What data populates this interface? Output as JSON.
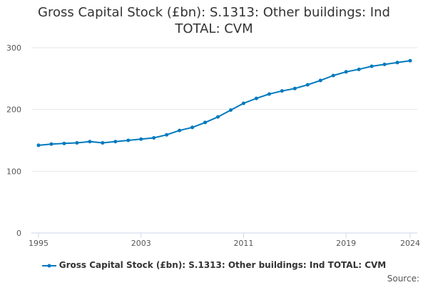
{
  "chart_data": {
    "type": "line",
    "title_lines": [
      "Gross Capital Stock (£bn): S.1313: Other buildings: Ind",
      "TOTAL: CVM"
    ],
    "x": [
      1995,
      1996,
      1997,
      1998,
      1999,
      2000,
      2001,
      2002,
      2003,
      2004,
      2005,
      2006,
      2007,
      2008,
      2009,
      2010,
      2011,
      2012,
      2013,
      2014,
      2015,
      2016,
      2017,
      2018,
      2019,
      2020,
      2021,
      2022,
      2023,
      2024
    ],
    "series": [
      {
        "name": "Gross Capital Stock (£bn): S.1313: Other buildings: Ind TOTAL: CVM",
        "color": "#0079bf",
        "values": [
          142,
          144,
          145,
          146,
          148,
          146,
          148,
          150,
          152,
          154,
          159,
          166,
          171,
          179,
          188,
          199,
          210,
          218,
          225,
          230,
          234,
          240,
          247,
          255,
          261,
          265,
          270,
          273,
          276,
          279
        ]
      }
    ],
    "xticks": [
      "1995",
      "2003",
      "2011",
      "2019",
      "2024"
    ],
    "yticks": [
      "0",
      "100",
      "200",
      "300"
    ],
    "ylim": [
      0,
      300
    ],
    "xlabel": "",
    "ylabel": "",
    "grid": true,
    "legend_position": "bottom-center"
  },
  "source_label": "Source:"
}
